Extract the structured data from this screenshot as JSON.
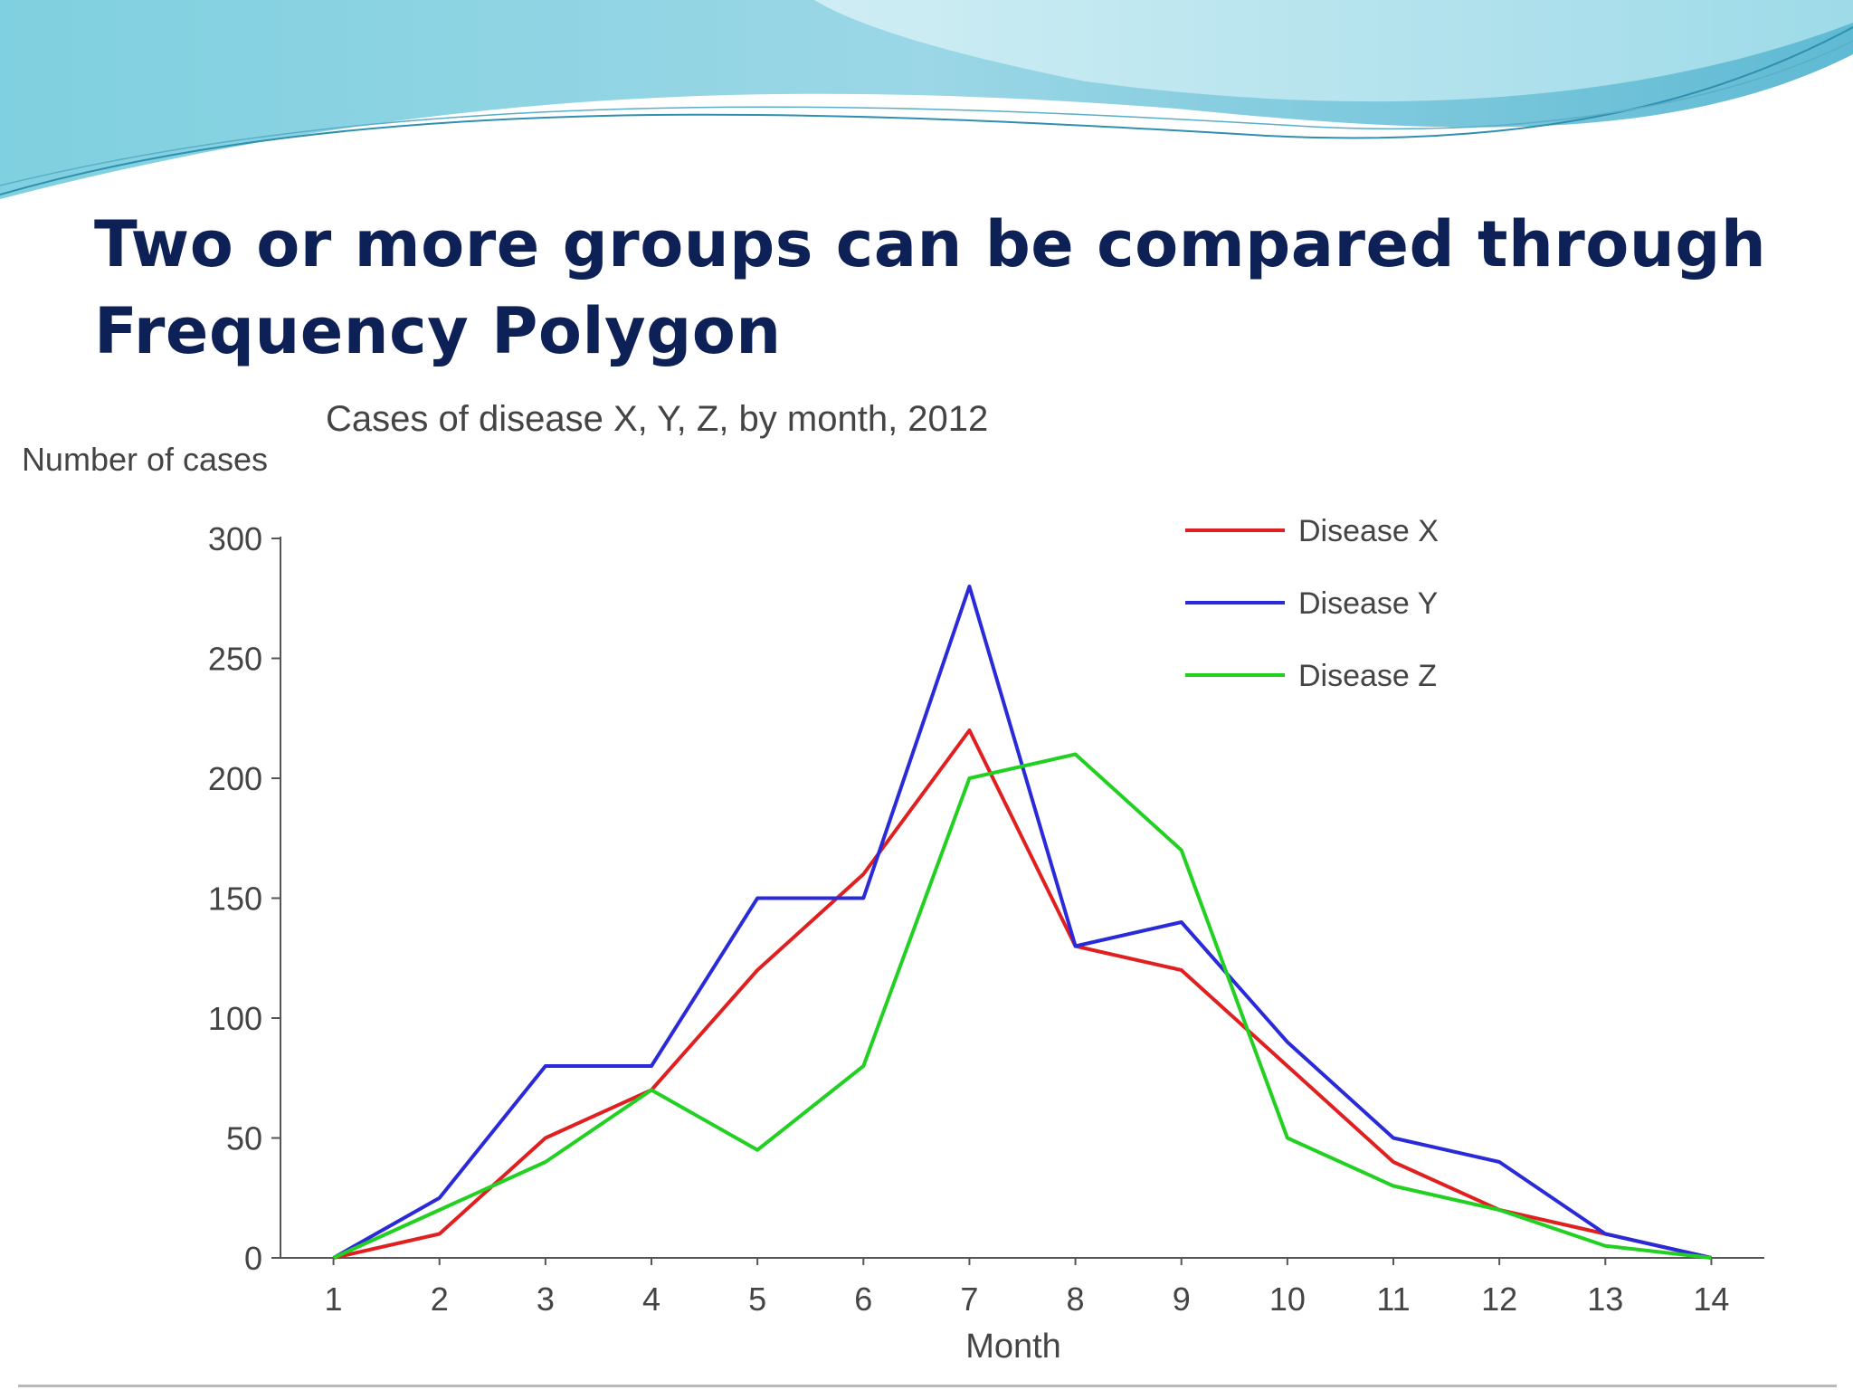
{
  "slide": {
    "title_line1": "Two or more groups can be compared through",
    "title_line2": "Frequency Polygon"
  },
  "chart_data": {
    "type": "line",
    "title": "Cases of disease X, Y, Z,  by month, 2012",
    "xlabel": "Month",
    "ylabel": "Number of cases",
    "x": [
      1,
      2,
      3,
      4,
      5,
      6,
      7,
      8,
      9,
      10,
      11,
      12,
      13,
      14
    ],
    "xlim": [
      0.5,
      14.5
    ],
    "ylim": [
      0,
      300
    ],
    "yticks": [
      0,
      50,
      100,
      150,
      200,
      250,
      300
    ],
    "grid": false,
    "legend_position": "top-right",
    "series": [
      {
        "name": "Disease X",
        "color": "#e02020",
        "values": [
          0,
          10,
          50,
          70,
          120,
          160,
          220,
          130,
          120,
          80,
          40,
          20,
          10,
          0
        ]
      },
      {
        "name": "Disease Y",
        "color": "#2a2ad8",
        "values": [
          0,
          25,
          80,
          80,
          150,
          150,
          280,
          130,
          140,
          90,
          50,
          40,
          10,
          0
        ]
      },
      {
        "name": "Disease Z",
        "color": "#22d022",
        "values": [
          0,
          20,
          40,
          70,
          45,
          80,
          200,
          210,
          170,
          50,
          30,
          20,
          5,
          0
        ]
      }
    ]
  },
  "theme": {
    "title_color": "#0d2157",
    "wave_dark": "#6cc3d9",
    "wave_light": "#bfe8f0",
    "axis_color": "#555555"
  }
}
